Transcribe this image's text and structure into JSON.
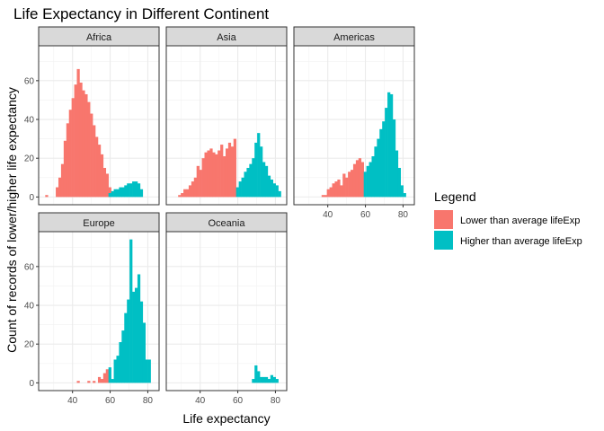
{
  "chart_data": {
    "type": "bar",
    "title": "Life Expectancy in Different Continent",
    "xlabel": "Life expectancy",
    "ylabel": "Count of records of lower/higher life expectancy",
    "xlim": [
      22,
      86
    ],
    "ylim": [
      -4,
      78
    ],
    "x_ticks": [
      40,
      60,
      80
    ],
    "y_ticks": [
      0,
      20,
      40,
      60
    ],
    "bin_width": 1.4,
    "facet_rows": 2,
    "facet_cols": 3,
    "legend": {
      "title": "Legend",
      "position": "right",
      "entries": [
        {
          "name": "Lower than average lifeExp",
          "color": "#F8766D"
        },
        {
          "name": "Higher than average lifeExp",
          "color": "#00BFC4"
        }
      ]
    },
    "panels": [
      {
        "name": "Africa",
        "series": [
          {
            "name": "Lower than average lifeExp",
            "color": "#F8766D",
            "x": [
              26.2,
              31.8,
              33.2,
              34.6,
              36.0,
              37.4,
              38.8,
              40.2,
              41.6,
              43.0,
              44.4,
              45.8,
              47.2,
              48.6,
              50.0,
              51.4,
              52.8,
              54.2,
              55.6,
              57.0,
              58.4,
              59.8
            ],
            "values": [
              1,
              5,
              10,
              17,
              29,
              38,
              45,
              51,
              58,
              66,
              59,
              55,
              53,
              49,
              43,
              37,
              31,
              27,
              22,
              15,
              12,
              5
            ]
          },
          {
            "name": "Higher than average lifeExp",
            "color": "#00BFC4",
            "x": [
              59.8,
              61.2,
              62.6,
              64.0,
              65.4,
              66.8,
              68.2,
              69.6,
              71.0,
              72.4,
              73.8,
              75.2,
              76.6
            ],
            "values": [
              2,
              3,
              4,
              4,
              5,
              5,
              6,
              7,
              7,
              8,
              8,
              7,
              4
            ]
          }
        ]
      },
      {
        "name": "Asia",
        "series": [
          {
            "name": "Lower than average lifeExp",
            "color": "#F8766D",
            "x": [
              29.0,
              30.4,
              31.8,
              33.2,
              34.6,
              36.0,
              37.4,
              38.8,
              40.2,
              41.6,
              43.0,
              44.4,
              45.8,
              47.2,
              48.6,
              50.0,
              51.4,
              52.8,
              54.2,
              55.6,
              57.0,
              58.4
            ],
            "values": [
              1,
              2,
              4,
              4,
              6,
              8,
              10,
              16,
              14,
              20,
              23,
              24,
              25,
              23,
              22,
              24,
              27,
              21,
              25,
              28,
              26,
              30
            ]
          },
          {
            "name": "Higher than average lifeExp",
            "color": "#00BFC4",
            "x": [
              59.8,
              61.2,
              62.6,
              64.0,
              65.4,
              66.8,
              68.2,
              69.6,
              71.0,
              72.4,
              73.8,
              75.2,
              76.6,
              78.0,
              79.4,
              80.8,
              82.2
            ],
            "values": [
              5,
              8,
              10,
              13,
              15,
              17,
              20,
              28,
              33,
              26,
              18,
              16,
              11,
              9,
              7,
              6,
              3
            ]
          }
        ]
      },
      {
        "name": "Americas",
        "series": [
          {
            "name": "Lower than average lifeExp",
            "color": "#F8766D",
            "x": [
              37.4,
              38.8,
              40.2,
              41.6,
              43.0,
              44.4,
              45.8,
              47.2,
              48.6,
              50.0,
              51.4,
              52.8,
              54.2,
              55.6,
              57.0,
              58.4
            ],
            "values": [
              1,
              1,
              4,
              5,
              7,
              8,
              9,
              6,
              12,
              10,
              13,
              14,
              17,
              19,
              20,
              18
            ]
          },
          {
            "name": "Higher than average lifeExp",
            "color": "#00BFC4",
            "x": [
              59.8,
              61.2,
              62.6,
              64.0,
              65.4,
              66.8,
              68.2,
              69.6,
              71.0,
              72.4,
              73.8,
              75.2,
              76.6,
              78.0,
              79.4,
              80.8
            ],
            "values": [
              13,
              16,
              18,
              21,
              26,
              30,
              35,
              39,
              46,
              54,
              53,
              40,
              24,
              15,
              6,
              2
            ]
          }
        ]
      },
      {
        "name": "Europe",
        "series": [
          {
            "name": "Lower than average lifeExp",
            "color": "#F8766D",
            "x": [
              43.0,
              48.6,
              51.4,
              54.2,
              55.6,
              57.0,
              58.4
            ],
            "values": [
              1,
              1,
              1,
              3,
              2,
              5,
              7
            ]
          },
          {
            "name": "Higher than average lifeExp",
            "color": "#00BFC4",
            "x": [
              59.8,
              61.2,
              62.6,
              64.0,
              65.4,
              66.8,
              68.2,
              69.6,
              71.0,
              72.4,
              73.8,
              75.2,
              76.6,
              78.0,
              79.4,
              80.8
            ],
            "values": [
              8,
              2,
              12,
              14,
              21,
              27,
              36,
              43,
              74,
              47,
              49,
              56,
              42,
              31,
              12,
              12
            ]
          }
        ]
      },
      {
        "name": "Oceania",
        "series": [
          {
            "name": "Higher than average lifeExp",
            "color": "#00BFC4",
            "x": [
              68.2,
              69.6,
              71.0,
              72.4,
              73.8,
              75.2,
              76.6,
              78.0,
              79.4,
              80.8
            ],
            "values": [
              2,
              9,
              6,
              3,
              3,
              3,
              2,
              4,
              3,
              2
            ]
          }
        ]
      }
    ]
  }
}
